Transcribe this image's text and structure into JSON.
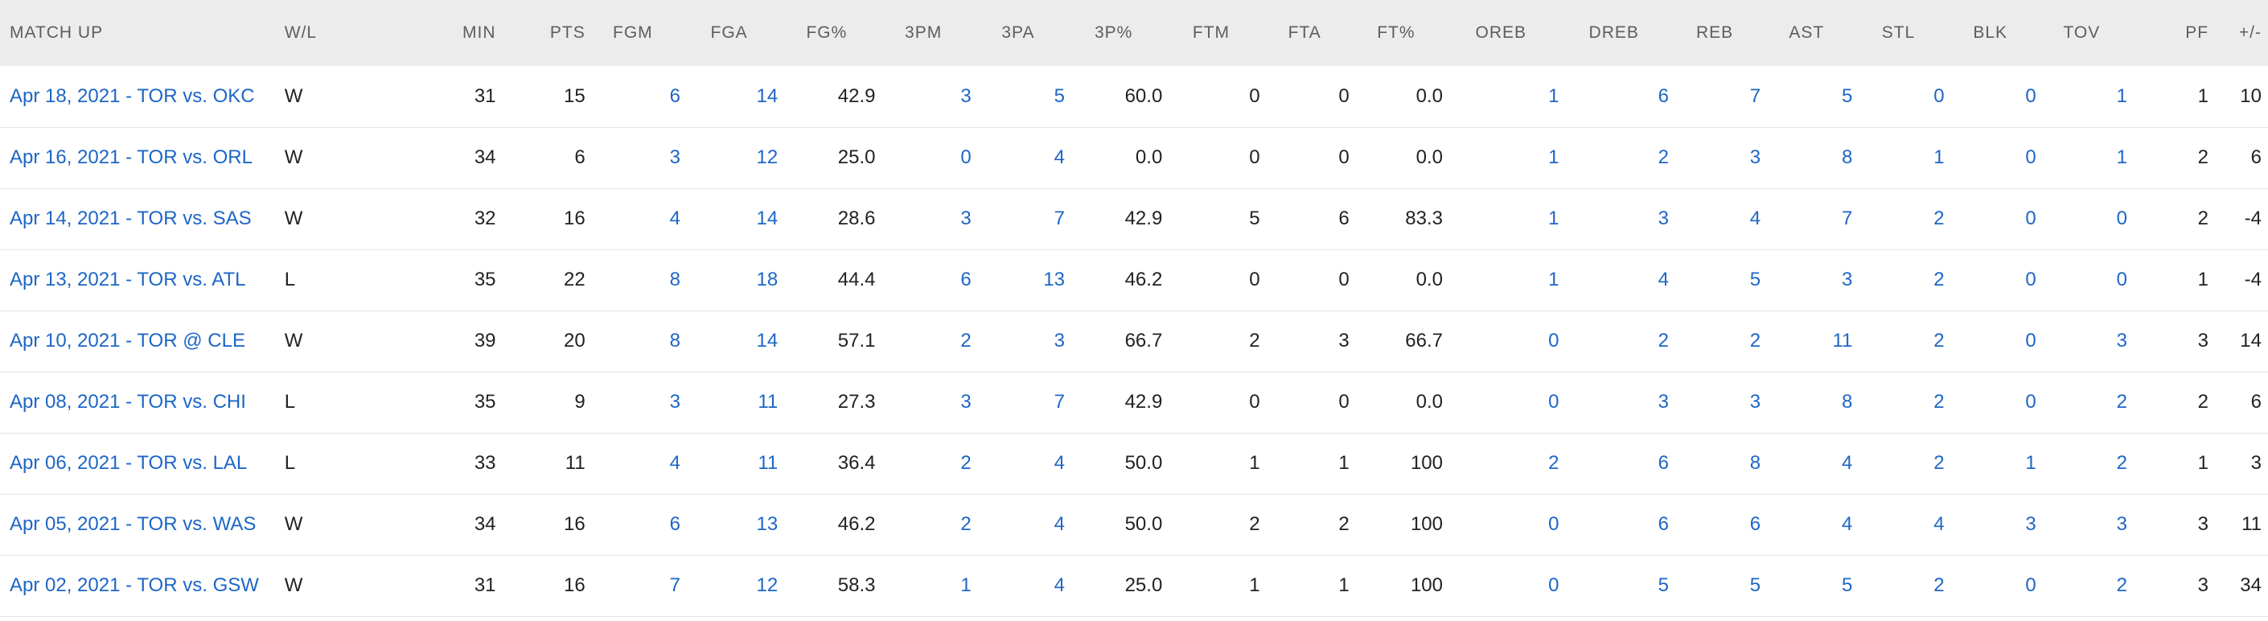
{
  "columns": [
    {
      "key": "matchup",
      "label": "MATCH UP"
    },
    {
      "key": "wl",
      "label": "W/L"
    },
    {
      "key": "min",
      "label": "MIN"
    },
    {
      "key": "pts",
      "label": "PTS"
    },
    {
      "key": "fgm",
      "label": "FGM"
    },
    {
      "key": "fga",
      "label": "FGA"
    },
    {
      "key": "fgp",
      "label": "FG%"
    },
    {
      "key": "tpm",
      "label": "3PM"
    },
    {
      "key": "tpa",
      "label": "3PA"
    },
    {
      "key": "tpp",
      "label": "3P%"
    },
    {
      "key": "ftm",
      "label": "FTM"
    },
    {
      "key": "fta",
      "label": "FTA"
    },
    {
      "key": "ftp",
      "label": "FT%"
    },
    {
      "key": "oreb",
      "label": "OREB"
    },
    {
      "key": "dreb",
      "label": "DREB"
    },
    {
      "key": "reb",
      "label": "REB"
    },
    {
      "key": "ast",
      "label": "AST"
    },
    {
      "key": "stl",
      "label": "STL"
    },
    {
      "key": "blk",
      "label": "BLK"
    },
    {
      "key": "tov",
      "label": "TOV"
    },
    {
      "key": "pf",
      "label": "PF"
    },
    {
      "key": "pm",
      "label": "+/-"
    }
  ],
  "link_color": "#1d66c6",
  "text_color": "#222222",
  "header_bg": "#ececec",
  "rows": [
    {
      "matchup": "Apr 18, 2021 - TOR vs. OKC",
      "wl": "W",
      "min": "31",
      "pts": "15",
      "fgm": "6",
      "fga": "14",
      "fgp": "42.9",
      "tpm": "3",
      "tpa": "5",
      "tpp": "60.0",
      "ftm": "0",
      "fta": "0",
      "ftp": "0.0",
      "oreb": "1",
      "dreb": "6",
      "reb": "7",
      "ast": "5",
      "stl": "0",
      "blk": "0",
      "tov": "1",
      "pf": "1",
      "pm": "10"
    },
    {
      "matchup": "Apr 16, 2021 - TOR vs. ORL",
      "wl": "W",
      "min": "34",
      "pts": "6",
      "fgm": "3",
      "fga": "12",
      "fgp": "25.0",
      "tpm": "0",
      "tpa": "4",
      "tpp": "0.0",
      "ftm": "0",
      "fta": "0",
      "ftp": "0.0",
      "oreb": "1",
      "dreb": "2",
      "reb": "3",
      "ast": "8",
      "stl": "1",
      "blk": "0",
      "tov": "1",
      "pf": "2",
      "pm": "6"
    },
    {
      "matchup": "Apr 14, 2021 - TOR vs. SAS",
      "wl": "W",
      "min": "32",
      "pts": "16",
      "fgm": "4",
      "fga": "14",
      "fgp": "28.6",
      "tpm": "3",
      "tpa": "7",
      "tpp": "42.9",
      "ftm": "5",
      "fta": "6",
      "ftp": "83.3",
      "oreb": "1",
      "dreb": "3",
      "reb": "4",
      "ast": "7",
      "stl": "2",
      "blk": "0",
      "tov": "0",
      "pf": "2",
      "pm": "-4"
    },
    {
      "matchup": "Apr 13, 2021 - TOR vs. ATL",
      "wl": "L",
      "min": "35",
      "pts": "22",
      "fgm": "8",
      "fga": "18",
      "fgp": "44.4",
      "tpm": "6",
      "tpa": "13",
      "tpp": "46.2",
      "ftm": "0",
      "fta": "0",
      "ftp": "0.0",
      "oreb": "1",
      "dreb": "4",
      "reb": "5",
      "ast": "3",
      "stl": "2",
      "blk": "0",
      "tov": "0",
      "pf": "1",
      "pm": "-4"
    },
    {
      "matchup": "Apr 10, 2021 - TOR @ CLE",
      "wl": "W",
      "min": "39",
      "pts": "20",
      "fgm": "8",
      "fga": "14",
      "fgp": "57.1",
      "tpm": "2",
      "tpa": "3",
      "tpp": "66.7",
      "ftm": "2",
      "fta": "3",
      "ftp": "66.7",
      "oreb": "0",
      "dreb": "2",
      "reb": "2",
      "ast": "11",
      "stl": "2",
      "blk": "0",
      "tov": "3",
      "pf": "3",
      "pm": "14"
    },
    {
      "matchup": "Apr 08, 2021 - TOR vs. CHI",
      "wl": "L",
      "min": "35",
      "pts": "9",
      "fgm": "3",
      "fga": "11",
      "fgp": "27.3",
      "tpm": "3",
      "tpa": "7",
      "tpp": "42.9",
      "ftm": "0",
      "fta": "0",
      "ftp": "0.0",
      "oreb": "0",
      "dreb": "3",
      "reb": "3",
      "ast": "8",
      "stl": "2",
      "blk": "0",
      "tov": "2",
      "pf": "2",
      "pm": "6"
    },
    {
      "matchup": "Apr 06, 2021 - TOR vs. LAL",
      "wl": "L",
      "min": "33",
      "pts": "11",
      "fgm": "4",
      "fga": "11",
      "fgp": "36.4",
      "tpm": "2",
      "tpa": "4",
      "tpp": "50.0",
      "ftm": "1",
      "fta": "1",
      "ftp": "100",
      "oreb": "2",
      "dreb": "6",
      "reb": "8",
      "ast": "4",
      "stl": "2",
      "blk": "1",
      "tov": "2",
      "pf": "1",
      "pm": "3"
    },
    {
      "matchup": "Apr 05, 2021 - TOR vs. WAS",
      "wl": "W",
      "min": "34",
      "pts": "16",
      "fgm": "6",
      "fga": "13",
      "fgp": "46.2",
      "tpm": "2",
      "tpa": "4",
      "tpp": "50.0",
      "ftm": "2",
      "fta": "2",
      "ftp": "100",
      "oreb": "0",
      "dreb": "6",
      "reb": "6",
      "ast": "4",
      "stl": "4",
      "blk": "3",
      "tov": "3",
      "pf": "3",
      "pm": "11"
    },
    {
      "matchup": "Apr 02, 2021 - TOR vs. GSW",
      "wl": "W",
      "min": "31",
      "pts": "16",
      "fgm": "7",
      "fga": "12",
      "fgp": "58.3",
      "tpm": "1",
      "tpa": "4",
      "tpp": "25.0",
      "ftm": "1",
      "fta": "1",
      "ftp": "100",
      "oreb": "0",
      "dreb": "5",
      "reb": "5",
      "ast": "5",
      "stl": "2",
      "blk": "0",
      "tov": "2",
      "pf": "3",
      "pm": "34"
    }
  ]
}
